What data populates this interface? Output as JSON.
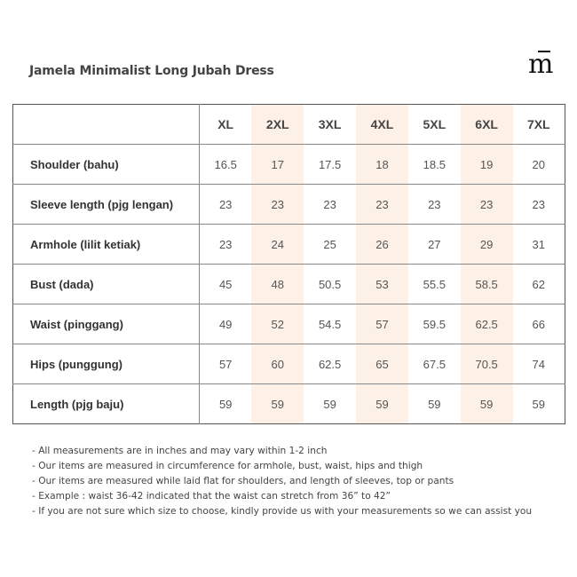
{
  "title": "Jamela Minimalist Long Jubah Dress",
  "brand_logo": "m",
  "sizes": [
    "XL",
    "2XL",
    "3XL",
    "4XL",
    "5XL",
    "6XL",
    "7XL"
  ],
  "rows": [
    {
      "label": "Shoulder (bahu)",
      "values": [
        "16.5",
        "17",
        "17.5",
        "18",
        "18.5",
        "19",
        "20"
      ]
    },
    {
      "label": "Sleeve length (pjg lengan)",
      "values": [
        "23",
        "23",
        "23",
        "23",
        "23",
        "23",
        "23"
      ]
    },
    {
      "label": "Armhole (lilit ketiak)",
      "values": [
        "23",
        "24",
        "25",
        "26",
        "27",
        "29",
        "31"
      ]
    },
    {
      "label": "Bust (dada)",
      "values": [
        "45",
        "48",
        "50.5",
        "53",
        "55.5",
        "58.5",
        "62"
      ]
    },
    {
      "label": "Waist (pinggang)",
      "values": [
        "49",
        "52",
        "54.5",
        "57",
        "59.5",
        "62.5",
        "66"
      ]
    },
    {
      "label": "Hips (punggung)",
      "values": [
        "57",
        "60",
        "62.5",
        "65",
        "67.5",
        "70.5",
        "74"
      ]
    },
    {
      "label": "Length (pjg baju)",
      "values": [
        "59",
        "59",
        "59",
        "59",
        "59",
        "59",
        "59"
      ]
    }
  ],
  "notes": [
    "- All measurements are in inches and may vary within 1-2 inch",
    "- Our items are measured in circumference for armhole, bust, waist, hips and thigh",
    "- Our items are measured while laid flat for shoulders, and length of sleeves, top or pants",
    "- Example : waist 36-42 indicated that the waist can stretch from 36” to 42”",
    "- If you are not sure which size to choose, kindly provide us with your measurements so we can assist you"
  ],
  "colors": {
    "highlight": "#fdf1e7",
    "border": "#888888"
  }
}
